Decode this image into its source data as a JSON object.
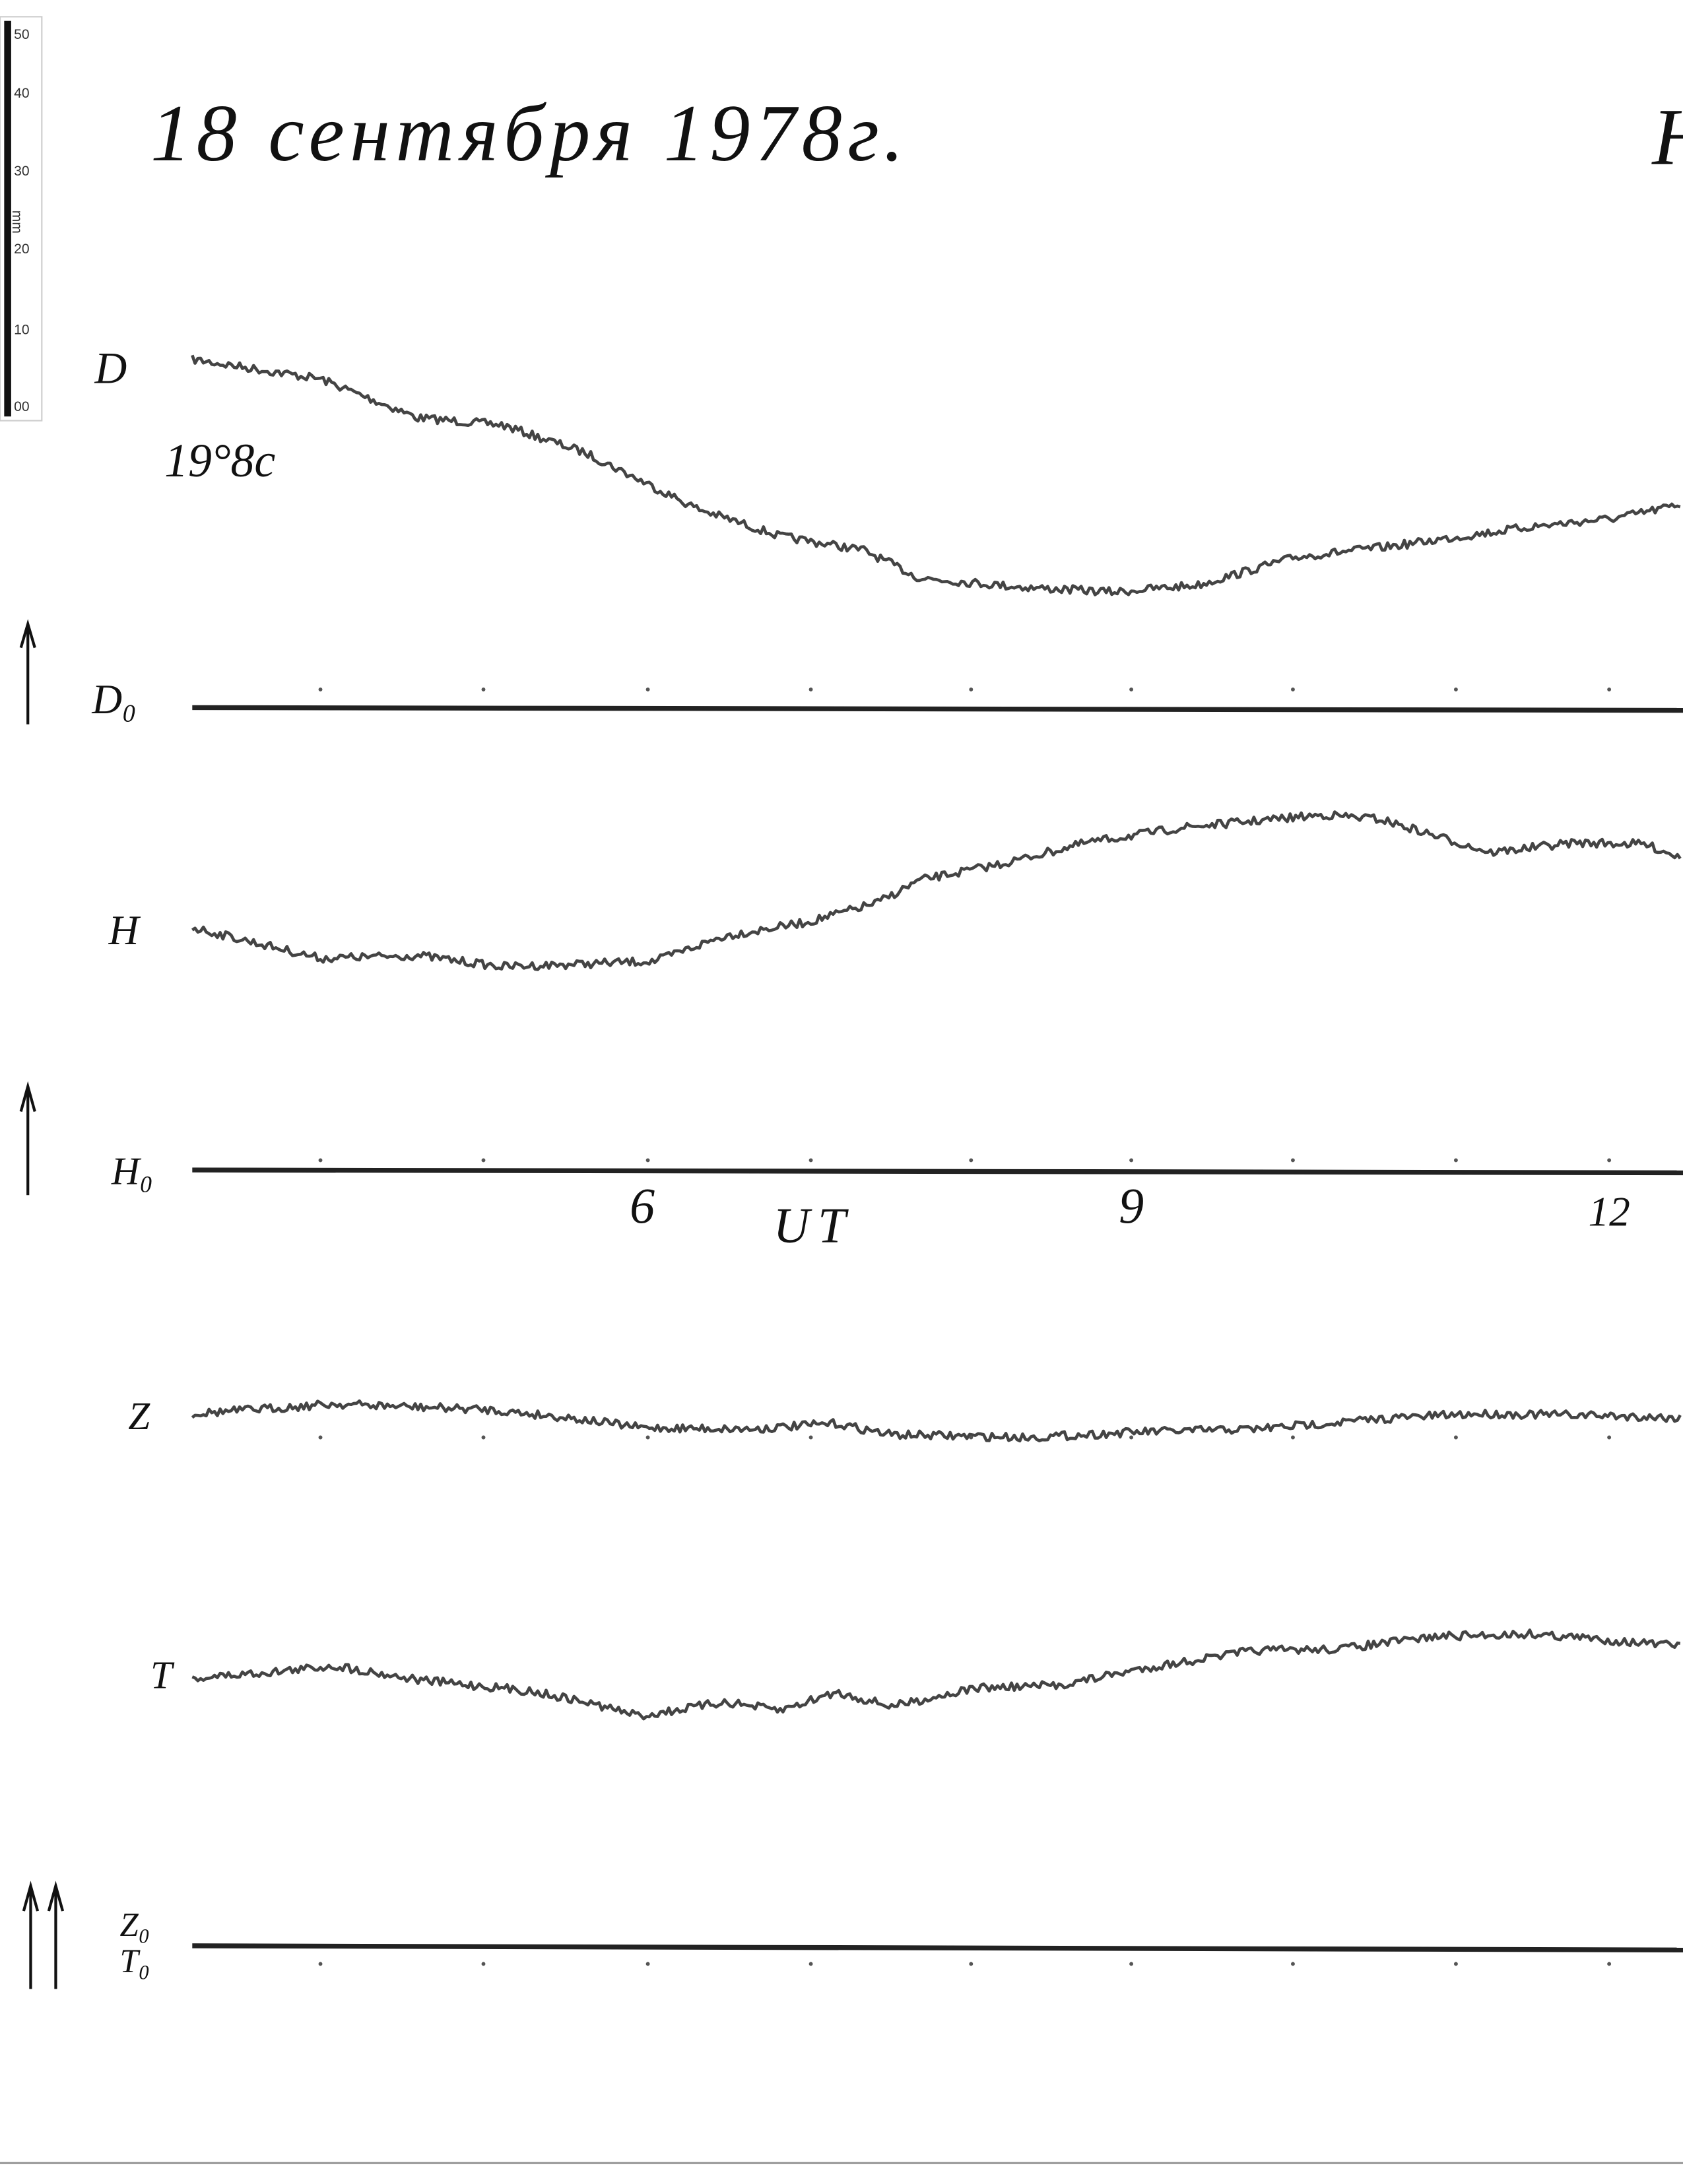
{
  "ruler": {
    "ticks": [
      "50",
      "40",
      "30",
      "20",
      "10",
      "00"
    ],
    "unit": "mm"
  },
  "header": {
    "title": "18 сентября 1978г.",
    "corner": "Н"
  },
  "traces": [
    {
      "label": "D",
      "note": "19°8с"
    },
    {
      "label": "Н"
    },
    {
      "label": "Z"
    },
    {
      "label": "T"
    }
  ],
  "baselines": [
    {
      "label": "D₀"
    },
    {
      "label": "Н₀"
    },
    {
      "label": "Z₀"
    },
    {
      "label": "T₀"
    }
  ],
  "time_axis": {
    "ticks": [
      "6",
      "9",
      "12"
    ],
    "label": "UT"
  }
}
